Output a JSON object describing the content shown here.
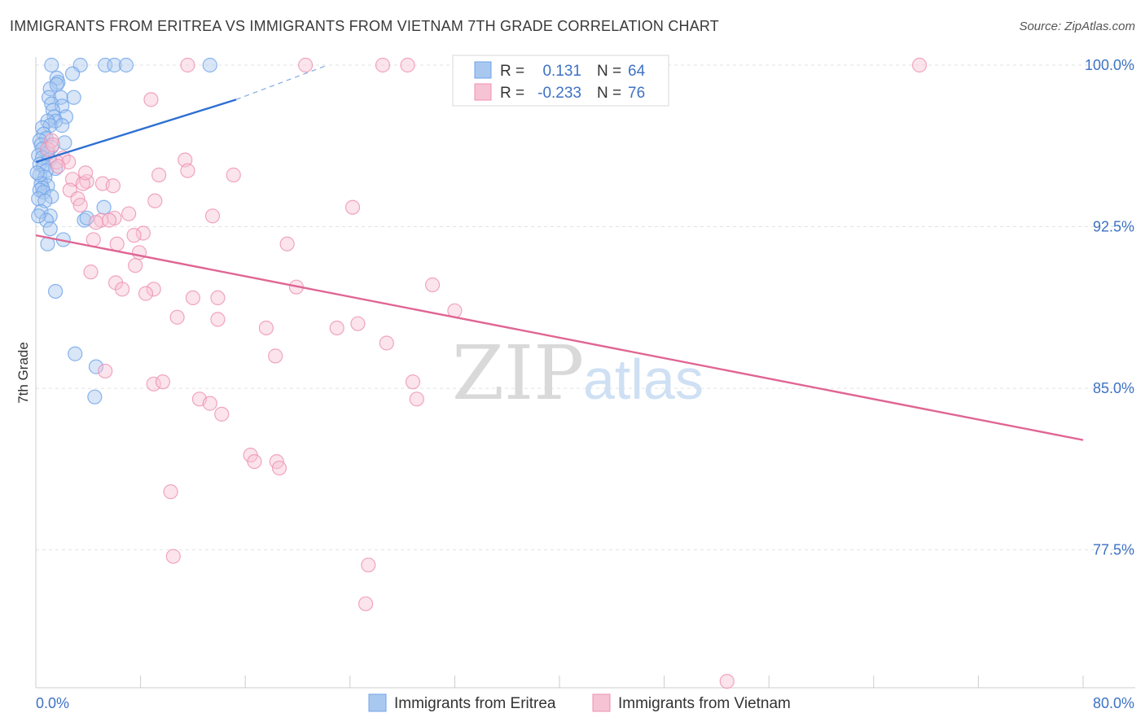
{
  "title": "IMMIGRANTS FROM ERITREA VS IMMIGRANTS FROM VIETNAM 7TH GRADE CORRELATION CHART",
  "source": "Source: ZipAtlas.com",
  "watermark": {
    "zip": "ZIP",
    "atlas": "atlas"
  },
  "colors": {
    "eritrea": "#6ea3e8",
    "eritrea_fill": "#a9c8f0",
    "eritrea_line": "#2e6fd1",
    "vietnam": "#ee90b1",
    "vietnam_fill": "#f6c3d5",
    "vietnam_line": "#e06593",
    "tick_text": "#3d72c4",
    "grid": "#e2e2e2"
  },
  "legend_box": {
    "rows": [
      {
        "r_label": "R =",
        "r_value": "0.131",
        "n_label": "N =",
        "n_value": "64"
      },
      {
        "r_label": "R =",
        "r_value": "-0.233",
        "n_label": "N =",
        "n_value": "76"
      }
    ]
  },
  "chart_data": {
    "type": "scatter",
    "title": "IMMIGRANTS FROM ERITREA VS IMMIGRANTS FROM VIETNAM 7TH GRADE CORRELATION CHART",
    "xlabel": "",
    "ylabel": "7th Grade",
    "xlim": [
      0,
      80
    ],
    "ylim": [
      72.5,
      100.9
    ],
    "x_tick_labels": [
      "0.0%",
      "80.0%"
    ],
    "y_ticks": [
      100.0,
      92.5,
      85.0,
      77.5
    ],
    "y_tick_labels": [
      "100.0%",
      "92.5%",
      "85.0%",
      "77.5%"
    ],
    "grid": true,
    "legend": "bottom-center",
    "series": [
      {
        "name": "Immigrants from Eritrea",
        "R": 0.131,
        "N": 64,
        "trend": {
          "x0": 0,
          "y0": 95.5,
          "x1": 15.3,
          "y1": 98.4,
          "dash_to_x": 22.3,
          "dash_to_y": 100.0
        },
        "points": [
          [
            1.2,
            100.0
          ],
          [
            3.4,
            100.0
          ],
          [
            5.3,
            100.0
          ],
          [
            6.0,
            100.0
          ],
          [
            6.9,
            100.0
          ],
          [
            13.3,
            100.0
          ],
          [
            2.8,
            99.6
          ],
          [
            1.6,
            99.4
          ],
          [
            1.7,
            99.2
          ],
          [
            1.1,
            98.9
          ],
          [
            1.6,
            99.1
          ],
          [
            2.9,
            98.5
          ],
          [
            1.0,
            98.5
          ],
          [
            1.9,
            98.5
          ],
          [
            1.2,
            98.2
          ],
          [
            2.0,
            98.1
          ],
          [
            1.3,
            97.9
          ],
          [
            1.4,
            97.6
          ],
          [
            2.3,
            97.6
          ],
          [
            1.5,
            97.4
          ],
          [
            0.9,
            97.4
          ],
          [
            1.1,
            97.2
          ],
          [
            0.5,
            97.1
          ],
          [
            2.0,
            97.2
          ],
          [
            0.6,
            96.8
          ],
          [
            0.8,
            96.6
          ],
          [
            0.3,
            96.5
          ],
          [
            0.4,
            96.3
          ],
          [
            2.2,
            96.4
          ],
          [
            1.2,
            96.2
          ],
          [
            0.5,
            96.1
          ],
          [
            0.9,
            95.9
          ],
          [
            0.2,
            95.8
          ],
          [
            0.5,
            95.7
          ],
          [
            1.0,
            95.6
          ],
          [
            0.3,
            95.4
          ],
          [
            0.6,
            95.3
          ],
          [
            1.5,
            95.2
          ],
          [
            0.8,
            95.1
          ],
          [
            0.3,
            94.9
          ],
          [
            0.7,
            94.8
          ],
          [
            0.4,
            94.5
          ],
          [
            0.9,
            94.4
          ],
          [
            0.5,
            94.3
          ],
          [
            0.3,
            94.2
          ],
          [
            0.6,
            94.1
          ],
          [
            1.2,
            93.9
          ],
          [
            0.2,
            93.8
          ],
          [
            0.7,
            93.7
          ],
          [
            5.2,
            93.4
          ],
          [
            0.4,
            93.2
          ],
          [
            1.1,
            93.0
          ],
          [
            3.7,
            92.8
          ],
          [
            3.9,
            92.9
          ],
          [
            0.8,
            92.8
          ],
          [
            1.1,
            92.4
          ],
          [
            2.1,
            91.9
          ],
          [
            0.9,
            91.7
          ],
          [
            1.5,
            89.5
          ],
          [
            3.0,
            86.6
          ],
          [
            4.6,
            86.0
          ],
          [
            4.5,
            84.6
          ],
          [
            0.2,
            93.0
          ],
          [
            0.1,
            95.0
          ]
        ]
      },
      {
        "name": "Immigrants from Vietnam",
        "R": -0.233,
        "N": 76,
        "trend": {
          "x0": 0,
          "y0": 92.1,
          "x1": 80,
          "y1": 82.6
        },
        "points": [
          [
            11.6,
            100.0
          ],
          [
            20.6,
            100.0
          ],
          [
            26.5,
            100.0
          ],
          [
            28.4,
            100.0
          ],
          [
            43.0,
            100.0
          ],
          [
            67.5,
            100.0
          ],
          [
            8.8,
            98.4
          ],
          [
            1.2,
            96.5
          ],
          [
            0.9,
            96.1
          ],
          [
            1.3,
            96.3
          ],
          [
            2.1,
            95.7
          ],
          [
            1.6,
            95.5
          ],
          [
            2.5,
            95.5
          ],
          [
            1.7,
            95.3
          ],
          [
            11.4,
            95.6
          ],
          [
            11.6,
            95.1
          ],
          [
            9.4,
            94.9
          ],
          [
            15.1,
            94.9
          ],
          [
            2.8,
            94.7
          ],
          [
            3.9,
            94.6
          ],
          [
            5.1,
            94.5
          ],
          [
            3.6,
            94.5
          ],
          [
            2.6,
            94.2
          ],
          [
            3.2,
            93.8
          ],
          [
            3.4,
            93.5
          ],
          [
            24.2,
            93.4
          ],
          [
            7.1,
            93.1
          ],
          [
            13.5,
            93.0
          ],
          [
            5.0,
            92.8
          ],
          [
            6.0,
            92.9
          ],
          [
            4.6,
            92.7
          ],
          [
            5.6,
            92.8
          ],
          [
            8.2,
            92.2
          ],
          [
            7.5,
            92.1
          ],
          [
            4.4,
            91.9
          ],
          [
            6.2,
            91.7
          ],
          [
            19.2,
            91.7
          ],
          [
            7.9,
            91.3
          ],
          [
            7.6,
            90.7
          ],
          [
            4.2,
            90.4
          ],
          [
            6.1,
            89.9
          ],
          [
            6.6,
            89.6
          ],
          [
            9.0,
            89.6
          ],
          [
            8.4,
            89.4
          ],
          [
            19.9,
            89.7
          ],
          [
            30.3,
            89.8
          ],
          [
            12.0,
            89.2
          ],
          [
            13.9,
            89.2
          ],
          [
            32.0,
            88.6
          ],
          [
            10.8,
            88.3
          ],
          [
            13.9,
            88.2
          ],
          [
            17.6,
            87.8
          ],
          [
            23.0,
            87.8
          ],
          [
            24.6,
            88.0
          ],
          [
            26.8,
            87.1
          ],
          [
            18.3,
            86.5
          ],
          [
            5.3,
            85.8
          ],
          [
            9.0,
            85.2
          ],
          [
            9.7,
            85.3
          ],
          [
            28.8,
            85.3
          ],
          [
            29.1,
            84.5
          ],
          [
            12.5,
            84.5
          ],
          [
            13.3,
            84.3
          ],
          [
            14.2,
            83.8
          ],
          [
            16.4,
            81.9
          ],
          [
            16.7,
            81.6
          ],
          [
            18.4,
            81.6
          ],
          [
            18.6,
            81.3
          ],
          [
            10.3,
            80.2
          ],
          [
            10.5,
            77.2
          ],
          [
            25.4,
            76.8
          ],
          [
            25.2,
            75.0
          ],
          [
            52.8,
            71.4
          ],
          [
            3.8,
            95.0
          ],
          [
            5.9,
            94.4
          ],
          [
            9.1,
            93.7
          ]
        ]
      }
    ]
  },
  "bottom_legend": [
    {
      "label": "Immigrants from Eritrea"
    },
    {
      "label": "Immigrants from Vietnam"
    }
  ]
}
